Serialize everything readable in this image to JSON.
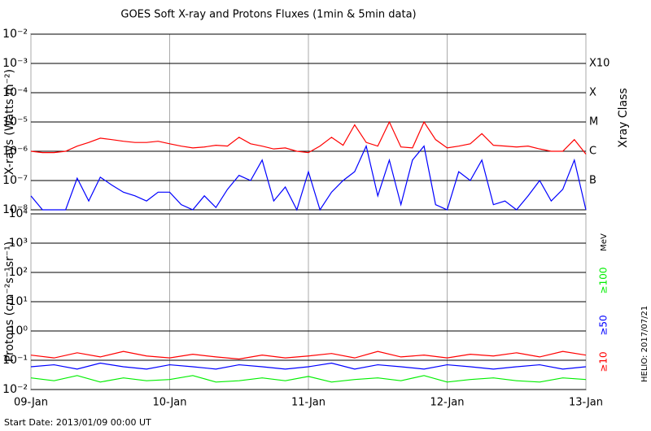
{
  "title": "GOES Soft X-ray and Protons Fluxes   (1min & 5min data)",
  "footer": {
    "start_date": "Start Date: 2013/01/09 00:00 UT",
    "credit": "HELIO: 2017/07/21"
  },
  "chart_data": [
    {
      "type": "line",
      "log_scale": true,
      "grid": true,
      "y_label": "X-rays (Watts m⁻²)",
      "y2_label": "Xray Class",
      "xlim": [
        0,
        96
      ],
      "xticks": [
        0,
        24,
        48,
        72,
        96
      ],
      "ylim": [
        1e-08,
        0.01
      ],
      "yticks": [
        {
          "value": 1e-08,
          "label": "10⁻⁸"
        },
        {
          "value": 1e-07,
          "label": "10⁻⁷"
        },
        {
          "value": 1e-06,
          "label": "10⁻⁶"
        },
        {
          "value": 1e-05,
          "label": "10⁻⁵"
        },
        {
          "value": 0.0001,
          "label": "10⁻⁴"
        },
        {
          "value": 0.001,
          "label": "10⁻³"
        },
        {
          "value": 0.01,
          "label": "10⁻²"
        }
      ],
      "y2ticks": [
        {
          "value": 1e-07,
          "label": "B"
        },
        {
          "value": 1e-06,
          "label": "C"
        },
        {
          "value": 1e-05,
          "label": "M"
        },
        {
          "value": 0.0001,
          "label": "X"
        },
        {
          "value": 0.001,
          "label": "X10"
        }
      ],
      "x": [
        0,
        2,
        4,
        6,
        8,
        10,
        12,
        14,
        16,
        18,
        20,
        22,
        24,
        26,
        28,
        30,
        32,
        34,
        36,
        38,
        40,
        42,
        44,
        46,
        48,
        50,
        52,
        54,
        56,
        58,
        60,
        62,
        64,
        66,
        68,
        70,
        72,
        74,
        76,
        78,
        80,
        82,
        84,
        86,
        88,
        90,
        92,
        94,
        96
      ],
      "series": [
        {
          "color": "#ff0000",
          "values": [
            1e-06,
            9e-07,
            9e-07,
            1e-06,
            1.5e-06,
            2e-06,
            2.8e-06,
            2.5e-06,
            2.2e-06,
            2e-06,
            2e-06,
            2.2e-06,
            1.8e-06,
            1.5e-06,
            1.3e-06,
            1.4e-06,
            1.6e-06,
            1.5e-06,
            3e-06,
            1.8e-06,
            1.5e-06,
            1.2e-06,
            1.3e-06,
            1e-06,
            9e-07,
            1.5e-06,
            3e-06,
            1.6e-06,
            8e-06,
            2e-06,
            1.5e-06,
            1e-05,
            1.4e-06,
            1.3e-06,
            1e-05,
            2.5e-06,
            1.3e-06,
            1.5e-06,
            1.8e-06,
            4e-06,
            1.6e-06,
            1.5e-06,
            1.4e-06,
            1.5e-06,
            1.2e-06,
            1e-06,
            1e-06,
            2.5e-06,
            8e-07
          ]
        },
        {
          "color": "#0000ff",
          "values": [
            3e-08,
            1e-08,
            1e-08,
            1e-08,
            1.2e-07,
            2e-08,
            1.3e-07,
            7e-08,
            4e-08,
            3e-08,
            2e-08,
            4e-08,
            4e-08,
            1.5e-08,
            1e-08,
            3e-08,
            1.2e-08,
            5e-08,
            1.5e-07,
            1e-07,
            5e-07,
            2e-08,
            6e-08,
            1e-08,
            2e-07,
            1e-08,
            4e-08,
            1e-07,
            2e-07,
            1.5e-06,
            3e-08,
            5e-07,
            1.5e-08,
            5e-07,
            1.5e-06,
            1.5e-08,
            1e-08,
            2e-07,
            1e-07,
            5e-07,
            1.5e-08,
            2e-08,
            1e-08,
            3e-08,
            1e-07,
            2e-08,
            5e-08,
            5e-07,
            1e-08
          ]
        }
      ]
    },
    {
      "type": "line",
      "log_scale": true,
      "grid": true,
      "y_label": "Protons (cm⁻²s⁻¹sr⁻¹)",
      "legend_title": "MeV",
      "xlim": [
        0,
        96
      ],
      "xticks": [
        {
          "value": 0,
          "label": "09-Jan"
        },
        {
          "value": 24,
          "label": "10-Jan"
        },
        {
          "value": 48,
          "label": "11-Jan"
        },
        {
          "value": 72,
          "label": "12-Jan"
        },
        {
          "value": 96,
          "label": "13-Jan"
        }
      ],
      "ylim": [
        0.01,
        10000.0
      ],
      "yticks": [
        {
          "value": 0.01,
          "label": "10⁻²"
        },
        {
          "value": 0.1,
          "label": "10⁻¹"
        },
        {
          "value": 1,
          "label": "10⁰"
        },
        {
          "value": 10,
          "label": "10¹"
        },
        {
          "value": 100,
          "label": "10²"
        },
        {
          "value": 1000,
          "label": "10³"
        },
        {
          "value": 10000,
          "label": "10⁴"
        }
      ],
      "reference_line": 10,
      "x": [
        0,
        4,
        8,
        12,
        16,
        20,
        24,
        28,
        32,
        36,
        40,
        44,
        48,
        52,
        56,
        60,
        64,
        68,
        72,
        76,
        80,
        84,
        88,
        92,
        96
      ],
      "series": [
        {
          "name": "≥10",
          "color": "#ff0000",
          "values": [
            0.15,
            0.12,
            0.18,
            0.13,
            0.2,
            0.14,
            0.12,
            0.16,
            0.13,
            0.11,
            0.15,
            0.12,
            0.14,
            0.17,
            0.12,
            0.2,
            0.13,
            0.15,
            0.12,
            0.16,
            0.14,
            0.18,
            0.13,
            0.2,
            0.15
          ]
        },
        {
          "name": "≥50",
          "color": "#0000ff",
          "values": [
            0.06,
            0.07,
            0.05,
            0.08,
            0.06,
            0.05,
            0.07,
            0.06,
            0.05,
            0.07,
            0.06,
            0.05,
            0.06,
            0.08,
            0.05,
            0.07,
            0.06,
            0.05,
            0.07,
            0.06,
            0.05,
            0.06,
            0.07,
            0.05,
            0.06
          ]
        },
        {
          "name": "≥100",
          "color": "#00ee00",
          "values": [
            0.025,
            0.02,
            0.03,
            0.018,
            0.025,
            0.02,
            0.022,
            0.03,
            0.018,
            0.02,
            0.025,
            0.02,
            0.028,
            0.018,
            0.022,
            0.025,
            0.02,
            0.03,
            0.018,
            0.022,
            0.025,
            0.02,
            0.018,
            0.025,
            0.022
          ]
        }
      ]
    }
  ]
}
